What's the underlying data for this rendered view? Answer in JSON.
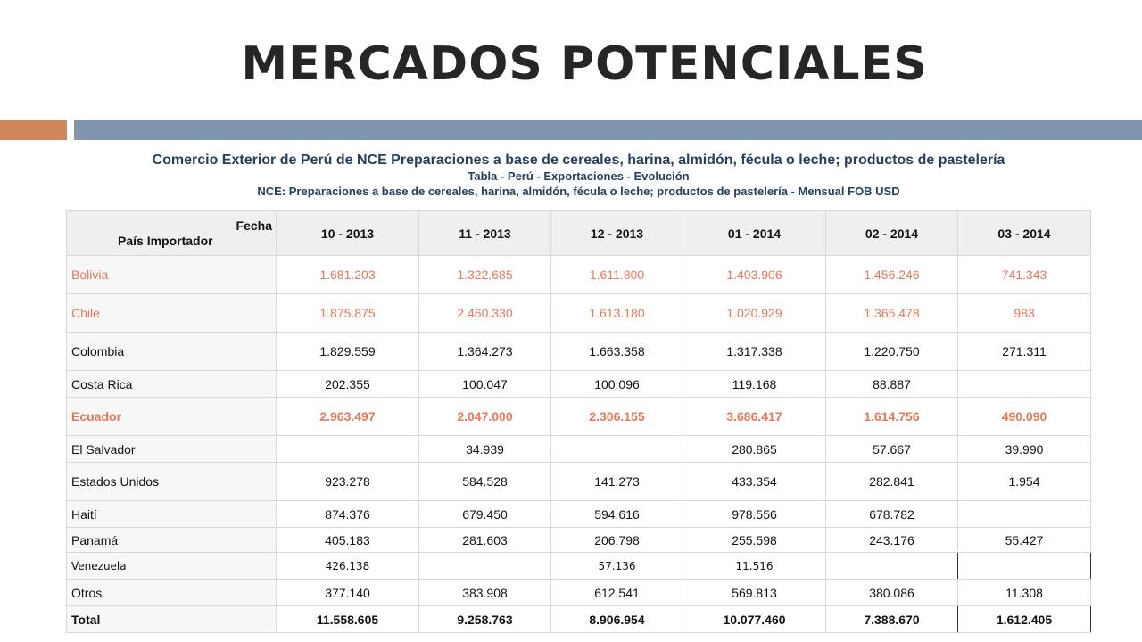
{
  "title": "MERCADOS POTENCIALES",
  "colors": {
    "accent_bar": "#d0875c",
    "main_bar": "#7f97ae",
    "highlight_text": "#e8775a",
    "caption_text": "#243f60"
  },
  "caption": {
    "line1": "Comercio Exterior de Perú de NCE Preparaciones a base de cereales, harina, almidón, fécula o leche; productos de pastelería",
    "line2": "Tabla - Perú - Exportaciones - Evolución",
    "line3": "NCE: Preparaciones a base de cereales, harina, almidón, fécula o leche; productos de pastelería - Mensual FOB USD"
  },
  "table": {
    "corner_top": "Fecha",
    "corner_bottom": "País Importador",
    "columns": [
      "10 - 2013",
      "11 - 2013",
      "12 - 2013",
      "01 - 2014",
      "02 - 2014",
      "03 - 2014"
    ],
    "rows": [
      {
        "country": "Bolivia",
        "values": [
          "1.681.203",
          "1.322.685",
          "1.611.800",
          "1.403.906",
          "1.456.246",
          "741.343"
        ]
      },
      {
        "country": "Chile",
        "values": [
          "1.875.875",
          "2.460.330",
          "1.613.180",
          "1.020.929",
          "1.365.478",
          "983"
        ]
      },
      {
        "country": "Colombia",
        "values": [
          "1.829.559",
          "1.364.273",
          "1.663.358",
          "1.317.338",
          "1.220.750",
          "271.311"
        ]
      },
      {
        "country": "Costa Rica",
        "values": [
          "202.355",
          "100.047",
          "100.096",
          "119.168",
          "88.887",
          ""
        ]
      },
      {
        "country": "Ecuador",
        "values": [
          "2.963.497",
          "2.047.000",
          "2.306.155",
          "3.686.417",
          "1.614.756",
          "490.090"
        ]
      },
      {
        "country": "El Salvador",
        "values": [
          "",
          "34.939",
          "",
          "280.865",
          "57.667",
          "39.990"
        ]
      },
      {
        "country": "Estados Unidos",
        "values": [
          "923.278",
          "584.528",
          "141.273",
          "433.354",
          "282.841",
          "1.954"
        ]
      },
      {
        "country": "Haití",
        "values": [
          "874.376",
          "679.450",
          "594.616",
          "978.556",
          "678.782",
          ""
        ]
      },
      {
        "country": "Panamá",
        "values": [
          "405.183",
          "281.603",
          "206.798",
          "255.598",
          "243.176",
          "55.427"
        ]
      },
      {
        "country": "Venezuela",
        "values": [
          "426.138",
          "",
          "57.136",
          "11.516",
          "",
          ""
        ]
      },
      {
        "country": "Otros",
        "values": [
          "377.140",
          "383.908",
          "612.541",
          "569.813",
          "380.086",
          "11.308"
        ]
      },
      {
        "country": "Total",
        "values": [
          "11.558.605",
          "9.258.763",
          "8.906.954",
          "10.077.460",
          "7.388.670",
          "1.612.405"
        ]
      }
    ]
  }
}
